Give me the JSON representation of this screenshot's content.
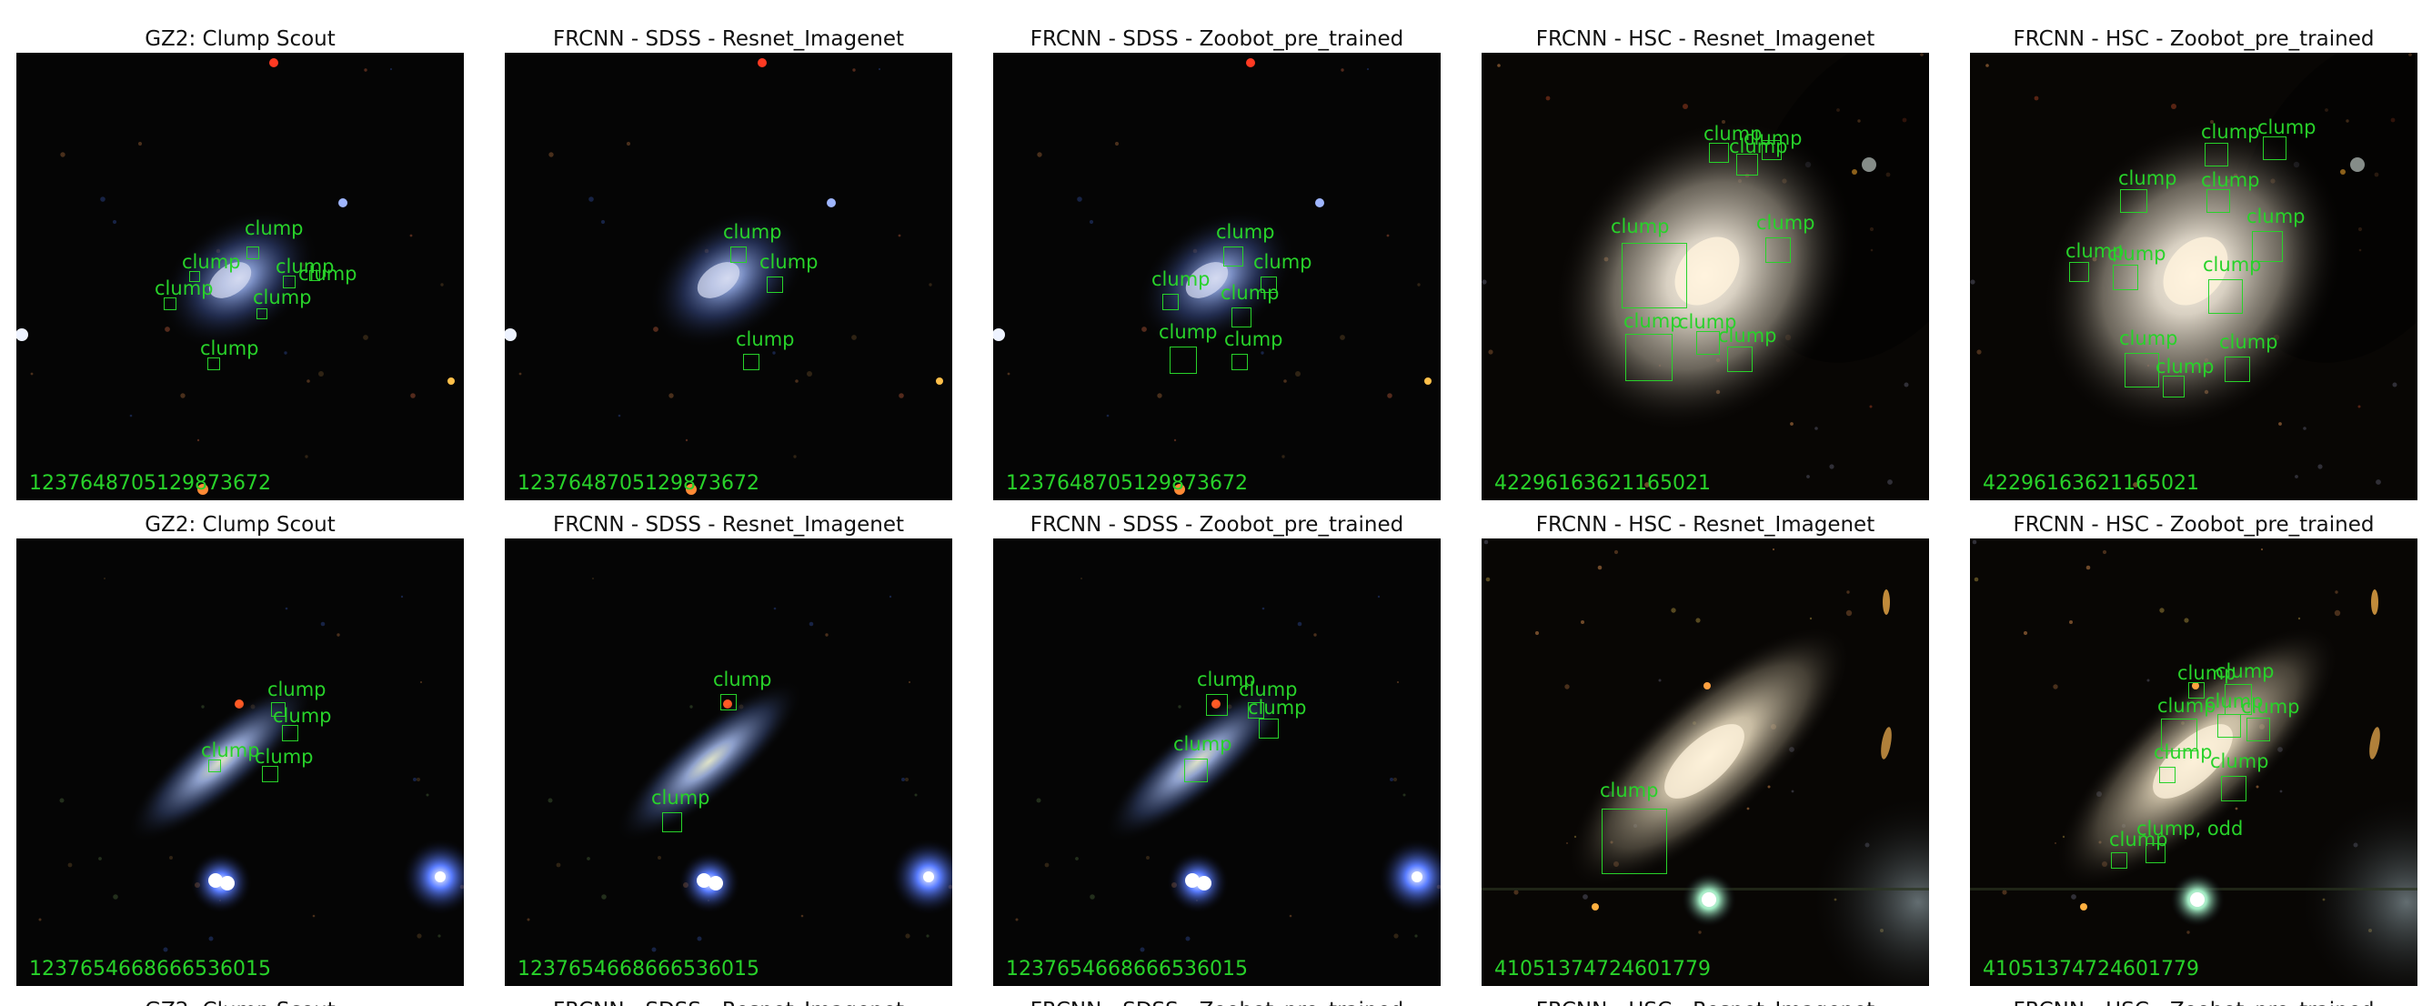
{
  "colors": {
    "annotation": "#28d22a",
    "sky": "#050505"
  },
  "rows": [
    {
      "panels": [
        {
          "title": "GZ2: Clump Scout",
          "object_id": "1237648705129873672",
          "scene": "sdss-spiral",
          "boxes": [
            {
              "label": "clump"
            },
            {
              "label": "clump"
            },
            {
              "label": "clump"
            },
            {
              "label": "clump"
            },
            {
              "label": "clump"
            },
            {
              "label": "clump"
            },
            {
              "label": "clump"
            }
          ]
        },
        {
          "title": "FRCNN - SDSS - Resnet_Imagenet",
          "object_id": "1237648705129873672",
          "scene": "sdss-spiral",
          "boxes": [
            {
              "label": "clump"
            },
            {
              "label": "clump"
            },
            {
              "label": "clump"
            }
          ]
        },
        {
          "title": "FRCNN - SDSS - Zoobot_pre_trained",
          "object_id": "1237648705129873672",
          "scene": "sdss-spiral",
          "boxes": [
            {
              "label": "clump"
            },
            {
              "label": "clump"
            },
            {
              "label": "clump"
            },
            {
              "label": "clump"
            },
            {
              "label": "clump"
            },
            {
              "label": "clump"
            }
          ]
        },
        {
          "title": "FRCNN - HSC - Resnet_Imagenet",
          "object_id": "42296163621165021",
          "scene": "hsc-spiral",
          "boxes": [
            {
              "label": "clump"
            },
            {
              "label": "clump"
            },
            {
              "label": "clump"
            },
            {
              "label": "clump"
            },
            {
              "label": "clump"
            },
            {
              "label": "clump"
            },
            {
              "label": "clump"
            },
            {
              "label": "clump"
            }
          ]
        },
        {
          "title": "FRCNN - HSC - Zoobot_pre_trained",
          "object_id": "42296163621165021",
          "scene": "hsc-spiral",
          "boxes": [
            {
              "label": "clump"
            },
            {
              "label": "clump"
            },
            {
              "label": "clump"
            },
            {
              "label": "clump"
            },
            {
              "label": "clump"
            },
            {
              "label": "clump"
            },
            {
              "label": "clump"
            },
            {
              "label": "clump"
            },
            {
              "label": "clump"
            },
            {
              "label": "clump"
            },
            {
              "label": "clump"
            }
          ]
        }
      ]
    },
    {
      "panels": [
        {
          "title": "GZ2: Clump Scout",
          "object_id": "1237654668666536015",
          "scene": "sdss-edge",
          "boxes": [
            {
              "label": "clump"
            },
            {
              "label": "clump"
            },
            {
              "label": "clump"
            },
            {
              "label": "clump"
            }
          ]
        },
        {
          "title": "FRCNN - SDSS - Resnet_Imagenet",
          "object_id": "1237654668666536015",
          "scene": "sdss-edge",
          "boxes": [
            {
              "label": "clump"
            },
            {
              "label": "clump"
            }
          ]
        },
        {
          "title": "FRCNN - SDSS - Zoobot_pre_trained",
          "object_id": "1237654668666536015",
          "scene": "sdss-edge",
          "boxes": [
            {
              "label": "clump"
            },
            {
              "label": "clump"
            },
            {
              "label": "clump"
            },
            {
              "label": "clump"
            },
            {
              "label": "clump"
            }
          ]
        },
        {
          "title": "FRCNN - HSC - Resnet_Imagenet",
          "object_id": "41051374724601779",
          "scene": "hsc-edge",
          "boxes": [
            {
              "label": "clump"
            }
          ]
        },
        {
          "title": "FRCNN - HSC - Zoobot_pre_trained",
          "object_id": "41051374724601779",
          "scene": "hsc-edge",
          "boxes": [
            {
              "label": "clump"
            },
            {
              "label": "clump"
            },
            {
              "label": "clump"
            },
            {
              "label": "clump"
            },
            {
              "label": "clump"
            },
            {
              "label": "clump"
            },
            {
              "label": "clump"
            },
            {
              "label": "clump"
            },
            {
              "label": "clump, odd"
            }
          ]
        }
      ]
    }
  ],
  "bottom_titles_partial": [
    "GZ2: Clump Scout",
    "FRCNN - SDSS - Resnet_Imagenet",
    "FRCNN - SDSS - Zoobot_pre_trained",
    "FRCNN - HSC - Resnet_Imagenet",
    "FRCNN - HSC - Zoobot_pre_trained"
  ]
}
